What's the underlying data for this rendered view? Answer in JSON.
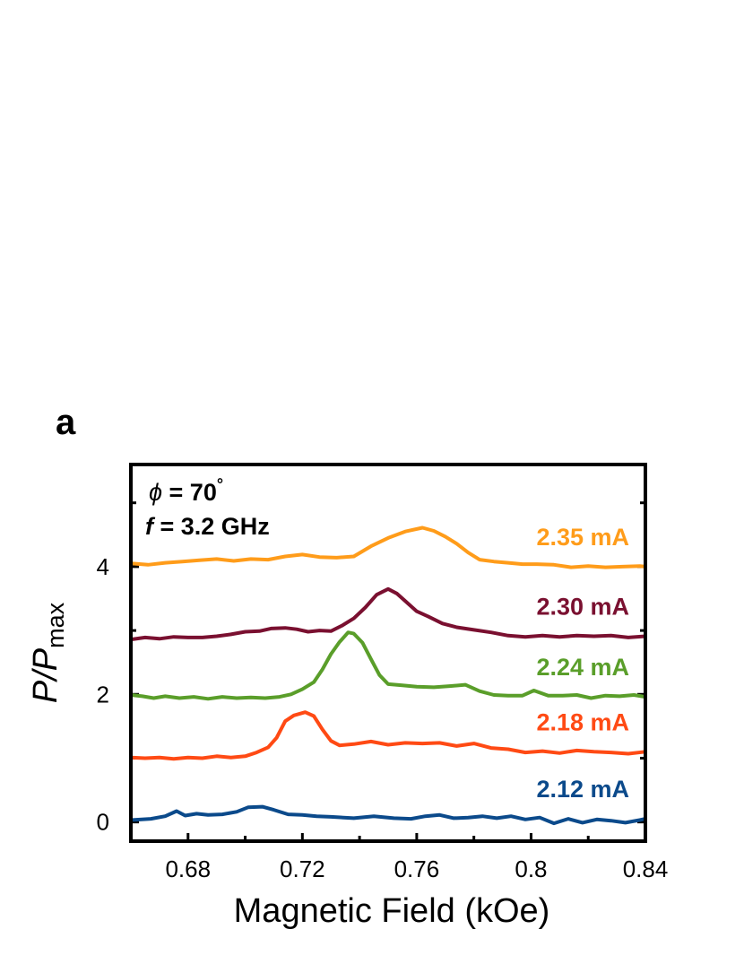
{
  "panel_label": "a",
  "chart_data": {
    "type": "line",
    "title": "",
    "xlabel": "Magnetic Field (kOe)",
    "ylabel": {
      "main": "P/P",
      "sub": "max"
    },
    "xlim": [
      0.66,
      0.84
    ],
    "ylim": [
      -0.3,
      5.6
    ],
    "xticks": [
      0.68,
      0.72,
      0.76,
      0.8,
      0.84
    ],
    "xtick_labels": [
      "0.68",
      "0.72",
      "0.76",
      "0.8",
      "0.84"
    ],
    "yticks": [
      0,
      2,
      4
    ],
    "ytick_labels": [
      "0",
      "2",
      "4"
    ],
    "grid": false,
    "annotations": {
      "phi_symbol": "ϕ",
      "phi_value": " = 70",
      "degree": "°",
      "f_symbol": "f",
      "f_value": " = 3.2 GHz"
    },
    "series": [
      {
        "name": "2.12 mA",
        "color": "#0B4A8B",
        "points": [
          [
            0.66,
            0.03
          ],
          [
            0.667,
            0.05
          ],
          [
            0.672,
            0.09
          ],
          [
            0.676,
            0.17
          ],
          [
            0.679,
            0.1
          ],
          [
            0.683,
            0.13
          ],
          [
            0.687,
            0.11
          ],
          [
            0.692,
            0.12
          ],
          [
            0.697,
            0.16
          ],
          [
            0.701,
            0.23
          ],
          [
            0.706,
            0.24
          ],
          [
            0.71,
            0.19
          ],
          [
            0.715,
            0.12
          ],
          [
            0.72,
            0.11
          ],
          [
            0.725,
            0.09
          ],
          [
            0.73,
            0.08
          ],
          [
            0.738,
            0.06
          ],
          [
            0.745,
            0.09
          ],
          [
            0.752,
            0.06
          ],
          [
            0.758,
            0.05
          ],
          [
            0.763,
            0.09
          ],
          [
            0.768,
            0.11
          ],
          [
            0.773,
            0.06
          ],
          [
            0.778,
            0.07
          ],
          [
            0.783,
            0.09
          ],
          [
            0.788,
            0.06
          ],
          [
            0.793,
            0.09
          ],
          [
            0.798,
            0.04
          ],
          [
            0.803,
            0.07
          ],
          [
            0.808,
            -0.02
          ],
          [
            0.813,
            0.05
          ],
          [
            0.818,
            -0.01
          ],
          [
            0.823,
            0.04
          ],
          [
            0.828,
            0.02
          ],
          [
            0.833,
            -0.01
          ],
          [
            0.838,
            0.03
          ],
          [
            0.84,
            0.05
          ]
        ]
      },
      {
        "name": "2.18 mA",
        "color": "#FF4A14",
        "points": [
          [
            0.66,
            1.01
          ],
          [
            0.665,
            1.0
          ],
          [
            0.67,
            1.01
          ],
          [
            0.675,
            0.99
          ],
          [
            0.68,
            1.01
          ],
          [
            0.685,
            1.0
          ],
          [
            0.69,
            1.03
          ],
          [
            0.695,
            1.01
          ],
          [
            0.7,
            1.03
          ],
          [
            0.704,
            1.09
          ],
          [
            0.708,
            1.17
          ],
          [
            0.711,
            1.32
          ],
          [
            0.714,
            1.58
          ],
          [
            0.717,
            1.67
          ],
          [
            0.721,
            1.72
          ],
          [
            0.724,
            1.66
          ],
          [
            0.727,
            1.45
          ],
          [
            0.73,
            1.27
          ],
          [
            0.733,
            1.2
          ],
          [
            0.738,
            1.22
          ],
          [
            0.744,
            1.26
          ],
          [
            0.75,
            1.21
          ],
          [
            0.756,
            1.24
          ],
          [
            0.762,
            1.23
          ],
          [
            0.768,
            1.24
          ],
          [
            0.774,
            1.19
          ],
          [
            0.78,
            1.23
          ],
          [
            0.786,
            1.16
          ],
          [
            0.792,
            1.14
          ],
          [
            0.798,
            1.09
          ],
          [
            0.804,
            1.11
          ],
          [
            0.81,
            1.08
          ],
          [
            0.816,
            1.12
          ],
          [
            0.822,
            1.1
          ],
          [
            0.828,
            1.09
          ],
          [
            0.834,
            1.07
          ],
          [
            0.84,
            1.1
          ]
        ]
      },
      {
        "name": "2.24 mA",
        "color": "#5A9E2A",
        "points": [
          [
            0.66,
            1.99
          ],
          [
            0.664,
            1.97
          ],
          [
            0.668,
            1.94
          ],
          [
            0.672,
            1.97
          ],
          [
            0.677,
            1.94
          ],
          [
            0.682,
            1.96
          ],
          [
            0.687,
            1.93
          ],
          [
            0.692,
            1.96
          ],
          [
            0.697,
            1.94
          ],
          [
            0.702,
            1.95
          ],
          [
            0.707,
            1.94
          ],
          [
            0.712,
            1.96
          ],
          [
            0.716,
            2.0
          ],
          [
            0.72,
            2.08
          ],
          [
            0.724,
            2.19
          ],
          [
            0.727,
            2.39
          ],
          [
            0.73,
            2.63
          ],
          [
            0.733,
            2.82
          ],
          [
            0.736,
            2.97
          ],
          [
            0.738,
            2.95
          ],
          [
            0.741,
            2.81
          ],
          [
            0.744,
            2.55
          ],
          [
            0.747,
            2.3
          ],
          [
            0.75,
            2.16
          ],
          [
            0.755,
            2.14
          ],
          [
            0.76,
            2.12
          ],
          [
            0.766,
            2.11
          ],
          [
            0.772,
            2.13
          ],
          [
            0.777,
            2.15
          ],
          [
            0.782,
            2.05
          ],
          [
            0.787,
            1.99
          ],
          [
            0.792,
            1.98
          ],
          [
            0.797,
            1.98
          ],
          [
            0.801,
            2.06
          ],
          [
            0.806,
            1.98
          ],
          [
            0.811,
            1.98
          ],
          [
            0.816,
            1.99
          ],
          [
            0.821,
            1.94
          ],
          [
            0.826,
            1.98
          ],
          [
            0.831,
            1.97
          ],
          [
            0.836,
            1.99
          ],
          [
            0.84,
            1.96
          ]
        ]
      },
      {
        "name": "2.30 mA",
        "color": "#7A1030",
        "points": [
          [
            0.66,
            2.86
          ],
          [
            0.665,
            2.89
          ],
          [
            0.67,
            2.87
          ],
          [
            0.675,
            2.9
          ],
          [
            0.68,
            2.89
          ],
          [
            0.685,
            2.89
          ],
          [
            0.69,
            2.91
          ],
          [
            0.695,
            2.94
          ],
          [
            0.7,
            2.98
          ],
          [
            0.705,
            2.99
          ],
          [
            0.709,
            3.03
          ],
          [
            0.714,
            3.04
          ],
          [
            0.718,
            3.02
          ],
          [
            0.722,
            2.98
          ],
          [
            0.726,
            3.0
          ],
          [
            0.73,
            2.99
          ],
          [
            0.734,
            3.08
          ],
          [
            0.738,
            3.19
          ],
          [
            0.742,
            3.36
          ],
          [
            0.746,
            3.56
          ],
          [
            0.75,
            3.65
          ],
          [
            0.753,
            3.58
          ],
          [
            0.756,
            3.46
          ],
          [
            0.76,
            3.3
          ],
          [
            0.764,
            3.22
          ],
          [
            0.769,
            3.11
          ],
          [
            0.774,
            3.05
          ],
          [
            0.78,
            3.01
          ],
          [
            0.786,
            2.97
          ],
          [
            0.792,
            2.92
          ],
          [
            0.798,
            2.9
          ],
          [
            0.804,
            2.92
          ],
          [
            0.81,
            2.9
          ],
          [
            0.816,
            2.92
          ],
          [
            0.822,
            2.91
          ],
          [
            0.828,
            2.92
          ],
          [
            0.834,
            2.89
          ],
          [
            0.84,
            2.91
          ]
        ]
      },
      {
        "name": "2.35 mA",
        "color": "#FF9C1A",
        "points": [
          [
            0.66,
            4.05
          ],
          [
            0.666,
            4.03
          ],
          [
            0.672,
            4.06
          ],
          [
            0.678,
            4.08
          ],
          [
            0.684,
            4.1
          ],
          [
            0.69,
            4.12
          ],
          [
            0.696,
            4.09
          ],
          [
            0.702,
            4.12
          ],
          [
            0.708,
            4.11
          ],
          [
            0.714,
            4.16
          ],
          [
            0.72,
            4.19
          ],
          [
            0.726,
            4.15
          ],
          [
            0.732,
            4.14
          ],
          [
            0.738,
            4.16
          ],
          [
            0.744,
            4.32
          ],
          [
            0.75,
            4.45
          ],
          [
            0.756,
            4.55
          ],
          [
            0.762,
            4.61
          ],
          [
            0.766,
            4.56
          ],
          [
            0.77,
            4.47
          ],
          [
            0.774,
            4.36
          ],
          [
            0.778,
            4.22
          ],
          [
            0.782,
            4.11
          ],
          [
            0.787,
            4.08
          ],
          [
            0.792,
            4.06
          ],
          [
            0.797,
            4.04
          ],
          [
            0.802,
            4.04
          ],
          [
            0.808,
            4.03
          ],
          [
            0.814,
            3.99
          ],
          [
            0.82,
            4.01
          ],
          [
            0.826,
            3.99
          ],
          [
            0.832,
            4.0
          ],
          [
            0.838,
            4.01
          ],
          [
            0.84,
            4.0
          ]
        ]
      }
    ]
  }
}
